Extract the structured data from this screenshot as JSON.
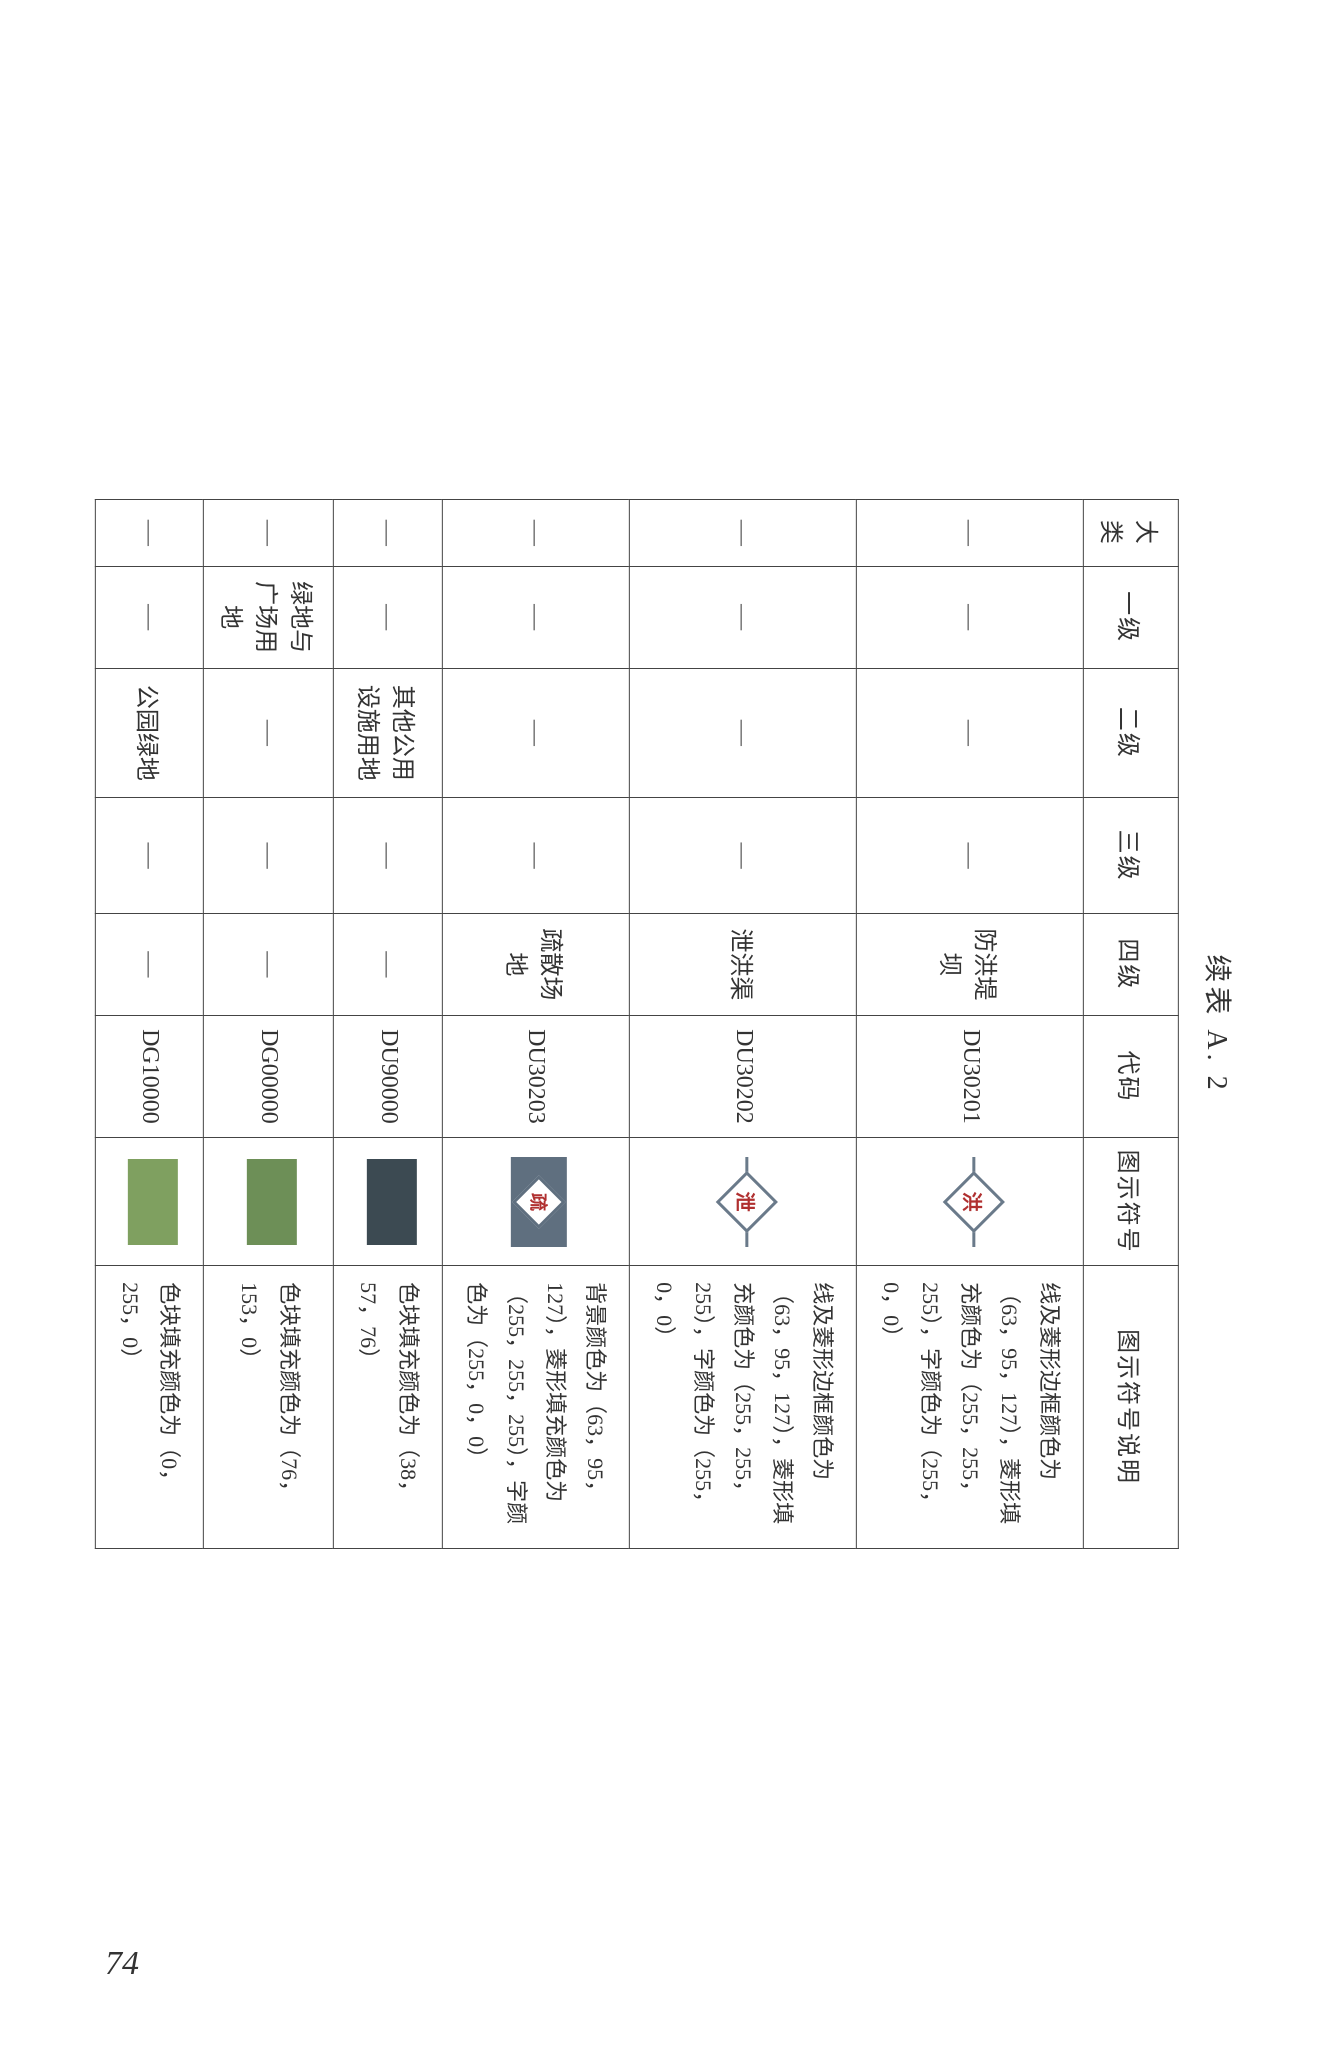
{
  "title": "续表 A. 2",
  "page_number": "74",
  "headers": {
    "daclass": "大类",
    "level1": "一级",
    "level2": "二级",
    "level3": "三级",
    "level4": "四级",
    "code": "代码",
    "symbol": "图示符号",
    "desc": "图示符号说明"
  },
  "dash": "—",
  "rows": [
    {
      "daclass": "—",
      "level1": "—",
      "level2": "—",
      "level3": "—",
      "level4": "防洪堤坝",
      "code": "DU30201",
      "symbol": {
        "type": "diamond-line",
        "line_color": "#6a7a8a",
        "border_color": "#6a7a8a",
        "fill_color": "#ffffff",
        "char": "洪",
        "char_color": "#b03030"
      },
      "desc": "线及菱形边框颜色为（63，95，127），菱形填充颜色为（255，255，255），字颜色为（255，0，0）"
    },
    {
      "daclass": "—",
      "level1": "—",
      "level2": "—",
      "level3": "—",
      "level4": "泄洪渠",
      "code": "DU30202",
      "symbol": {
        "type": "diamond-line",
        "line_color": "#6a7a8a",
        "border_color": "#6a7a8a",
        "fill_color": "#ffffff",
        "char": "泄",
        "char_color": "#b03030"
      },
      "desc": "线及菱形边框颜色为（63，95，127），菱形填充颜色为（255，255，255），字颜色为（255，0，0）"
    },
    {
      "daclass": "—",
      "level1": "—",
      "level2": "—",
      "level3": "—",
      "level4": "疏散场地",
      "code": "DU30203",
      "symbol": {
        "type": "diamond-bg",
        "bg_color": "#5f6f7f",
        "border_color": "#5f6f7f",
        "fill_color": "#ffffff",
        "char": "疏",
        "char_color": "#b03030"
      },
      "desc": "背景颜色为（63，95，127），菱形填充颜色为（255，255，255），字颜色为（255，0，0）"
    },
    {
      "daclass": "—",
      "level1": "—",
      "level2": "其他公用\n设施用地",
      "level3": "—",
      "level4": "—",
      "code": "DU90000",
      "symbol": {
        "type": "swatch",
        "color": "#3c4a52"
      },
      "desc": "色块填充颜色为（38，57，76）"
    },
    {
      "daclass": "—",
      "level1": "绿地与\n广场用地",
      "level2": "—",
      "level3": "—",
      "level4": "—",
      "code": "DG00000",
      "symbol": {
        "type": "swatch",
        "color": "#6d8f57"
      },
      "desc": "色块填充颜色为（76，153，0）"
    },
    {
      "daclass": "—",
      "level1": "—",
      "level2": "公园绿地",
      "level3": "—",
      "level4": "—",
      "code": "DG10000",
      "symbol": {
        "type": "swatch",
        "color": "#7fa060"
      },
      "desc": "色块填充颜色为（0，255，0）"
    }
  ]
}
